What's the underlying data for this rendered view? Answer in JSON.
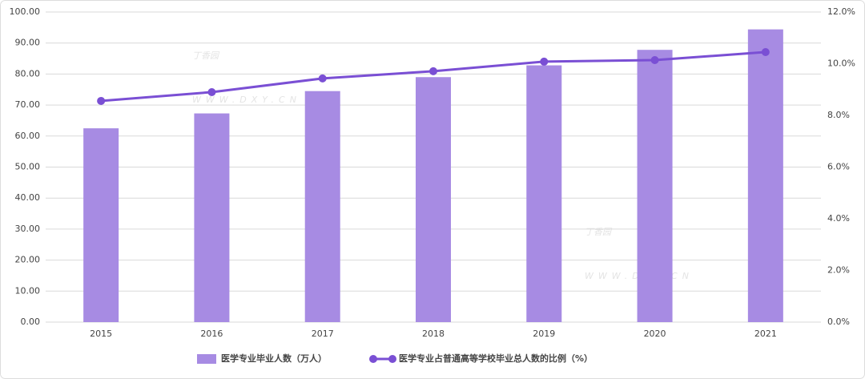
{
  "chart_data": {
    "type": "bar-line",
    "categories": [
      "2015",
      "2016",
      "2017",
      "2018",
      "2019",
      "2020",
      "2021"
    ],
    "series": [
      {
        "name": "医学专业毕业人数（万人）",
        "type": "bar",
        "color": "#a78be3",
        "values": [
          62.5,
          67.3,
          74.5,
          79.0,
          82.8,
          87.8,
          94.4
        ]
      },
      {
        "name": "医学专业占普通高等学校毕业总人数的比例（%）",
        "type": "line",
        "axis": "y2",
        "color": "#7a4fd4",
        "values": [
          8.56,
          8.9,
          9.43,
          9.71,
          10.08,
          10.14,
          10.45
        ]
      }
    ],
    "ylim": [
      0,
      100
    ],
    "yticks": [
      {
        "value": 0,
        "label": "0.00"
      },
      {
        "value": 10,
        "label": "10.00"
      },
      {
        "value": 20,
        "label": "20.00"
      },
      {
        "value": 30,
        "label": "30.00"
      },
      {
        "value": 40,
        "label": "40.00"
      },
      {
        "value": 50,
        "label": "50.00"
      },
      {
        "value": 60,
        "label": "60.00"
      },
      {
        "value": 70,
        "label": "70.00"
      },
      {
        "value": 80,
        "label": "80.00"
      },
      {
        "value": 90,
        "label": "90.00"
      },
      {
        "value": 100,
        "label": "100.00"
      }
    ],
    "y2lim": [
      0,
      12
    ],
    "y2ticks": [
      {
        "value": 0,
        "label": "0.0%"
      },
      {
        "value": 2,
        "label": "2.0%"
      },
      {
        "value": 4,
        "label": "4.0%"
      },
      {
        "value": 6,
        "label": "6.0%"
      },
      {
        "value": 8,
        "label": "8.0%"
      },
      {
        "value": 10,
        "label": "10.0%"
      },
      {
        "value": 12,
        "label": "12.0%"
      }
    ],
    "grid": true,
    "legend": "bottom",
    "watermark": [
      "丁香园",
      "WWW.DXY.CN"
    ]
  }
}
